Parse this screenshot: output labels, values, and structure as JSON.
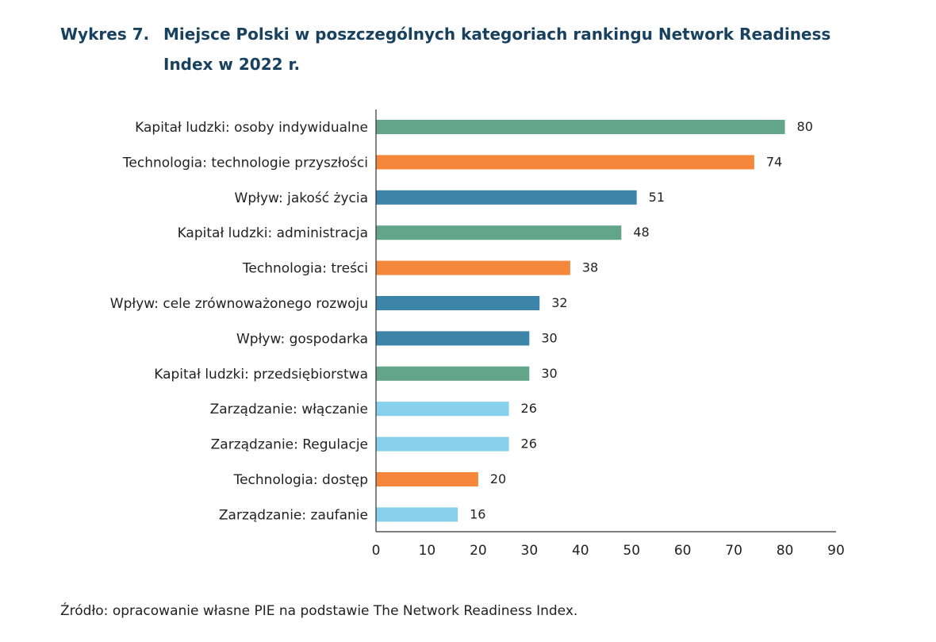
{
  "header": {
    "figure_number": "Wykres 7.",
    "title": "Miejsce Polski w poszczególnych kategoriach rankingu Network Readiness Index w 2022 r."
  },
  "source": "Źródło: opracowanie własne PIE na podstawie The Network Readiness Index.",
  "chart_data": {
    "type": "bar",
    "orientation": "horizontal",
    "categories": [
      "Kapitał ludzki: osoby indywidualne",
      "Technologia: technologie przyszłości",
      "Wpływ: jakość życia",
      "Kapitał ludzki: administracja",
      "Technologia: treści",
      "Wpływ: cele zrównoważonego rozwoju",
      "Wpływ: gospodarka",
      "Kapitał ludzki: przedsiębiorstwa",
      "Zarządzanie: włączanie",
      "Zarządzanie: Regulacje",
      "Technologia: dostęp",
      "Zarządzanie: zaufanie"
    ],
    "values": [
      80,
      74,
      51,
      48,
      38,
      32,
      30,
      30,
      26,
      26,
      20,
      16
    ],
    "value_labels": [
      "80",
      "74",
      "51",
      "48",
      "38",
      "32",
      "30",
      "30",
      "26",
      "26",
      "20",
      "16"
    ],
    "bar_colors": [
      "#62a58b",
      "#f5873c",
      "#3c84a8",
      "#62a58b",
      "#f5873c",
      "#3c84a8",
      "#3c84a8",
      "#62a58b",
      "#86d0ee",
      "#86d0ee",
      "#f5873c",
      "#86d0ee"
    ],
    "xlim": [
      0,
      90
    ],
    "xticks": [
      0,
      10,
      20,
      30,
      40,
      50,
      60,
      70,
      80,
      90
    ],
    "xtick_labels": [
      "0",
      "10",
      "20",
      "30",
      "40",
      "50",
      "60",
      "70",
      "80",
      "90"
    ],
    "xlabel": "",
    "ylabel": "",
    "grid": false,
    "legend": "none"
  }
}
